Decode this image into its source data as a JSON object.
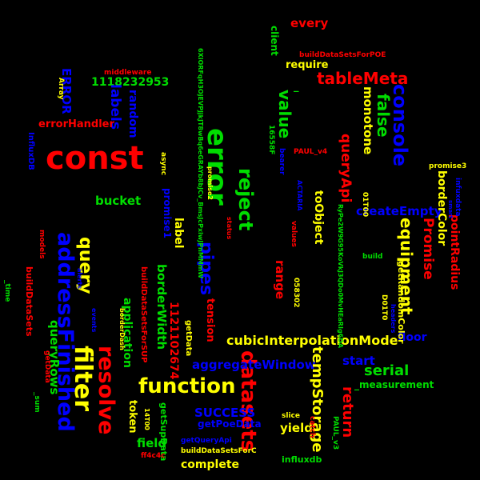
{
  "colors": {
    "red": "#ff0000",
    "green": "#00dd00",
    "blue": "#0000ff",
    "yellow": "#ffff00",
    "background": "#000000"
  },
  "words": [
    {
      "text": "const",
      "color": "red"
    },
    {
      "text": "error",
      "color": "green"
    },
    {
      "text": "filter",
      "color": "yellow"
    },
    {
      "text": "addressFinished",
      "color": "blue"
    },
    {
      "text": "resolve",
      "color": "red"
    },
    {
      "text": "function",
      "color": "yellow"
    },
    {
      "text": "datasets",
      "color": "red"
    },
    {
      "text": "reject",
      "color": "green"
    },
    {
      "text": "console",
      "color": "blue"
    },
    {
      "text": "tableMeta",
      "color": "red"
    },
    {
      "text": "pipes",
      "color": "blue"
    },
    {
      "text": "value",
      "color": "green"
    },
    {
      "text": "_",
      "color": "green"
    },
    {
      "text": "query",
      "color": "yellow"
    },
    {
      "text": "equipment",
      "color": "yellow"
    },
    {
      "text": "Promise",
      "color": "red"
    },
    {
      "text": "false",
      "color": "green"
    },
    {
      "text": "monotone",
      "color": "yellow"
    },
    {
      "text": "cubicInterpolationMode",
      "color": "yellow"
    },
    {
      "text": "aggregateWindow",
      "color": "blue"
    },
    {
      "text": "serial",
      "color": "green"
    },
    {
      "text": "tempStorage",
      "color": "yellow"
    },
    {
      "text": "return",
      "color": "red"
    },
    {
      "text": "1118232953",
      "color": "green"
    },
    {
      "text": "queryApi",
      "color": "red"
    },
    {
      "text": "createEmpty",
      "color": "blue"
    },
    {
      "text": "labels",
      "color": "blue"
    },
    {
      "text": "random",
      "color": "blue"
    },
    {
      "text": "ERROR",
      "color": "blue"
    },
    {
      "text": "errorHandler",
      "color": "red"
    },
    {
      "text": "bucket",
      "color": "green"
    },
    {
      "text": "label",
      "color": "yellow"
    },
    {
      "text": "toObject",
      "color": "yellow"
    },
    {
      "text": "borderColor",
      "color": "yellow"
    },
    {
      "text": "pointRadius",
      "color": "red"
    },
    {
      "text": "queryRows",
      "color": "green"
    },
    {
      "text": "application",
      "color": "green"
    },
    {
      "text": "borderWidth",
      "color": "green"
    },
    {
      "text": "SUCCESS",
      "color": "blue"
    },
    {
      "text": "tension",
      "color": "red"
    },
    {
      "text": "range",
      "color": "red"
    },
    {
      "text": "start",
      "color": "blue"
    },
    {
      "text": "every",
      "color": "red"
    },
    {
      "text": "require",
      "color": "yellow"
    },
    {
      "text": "1121102674",
      "color": "red"
    },
    {
      "text": "token",
      "color": "yellow"
    },
    {
      "text": "field",
      "color": "green"
    },
    {
      "text": "yield",
      "color": "yellow"
    },
    {
      "text": "complete",
      "color": "yellow"
    },
    {
      "text": "getPoeData",
      "color": "blue"
    },
    {
      "text": "floor",
      "color": "blue"
    },
    {
      "text": "_measurement",
      "color": "green"
    },
    {
      "text": "getRandomColor",
      "color": "yellow"
    },
    {
      "text": "influxdb",
      "color": "green"
    },
    {
      "text": "client",
      "color": "green"
    },
    {
      "text": "promise1",
      "color": "blue"
    },
    {
      "text": "getData",
      "color": "yellow"
    },
    {
      "text": "buildDataSetsForPOE",
      "color": "red"
    },
    {
      "text": "middleware",
      "color": "red"
    },
    {
      "text": "Array",
      "color": "yellow"
    },
    {
      "text": "InfluxDB",
      "color": "blue"
    },
    {
      "text": "models",
      "color": "red"
    },
    {
      "text": "buildDataSets",
      "color": "red"
    },
    {
      "text": "_time",
      "color": "green"
    },
    {
      "text": "getData",
      "color": "red"
    },
    {
      "text": "events",
      "color": "blue"
    },
    {
      "text": "borderDash",
      "color": "yellow"
    },
    {
      "text": "buildDataSetsForSUP",
      "color": "red"
    },
    {
      "text": "14T00",
      "color": "yellow"
    },
    {
      "text": "getSupData",
      "color": "green"
    },
    {
      "text": "ff4c4c",
      "color": "red"
    },
    {
      "text": "getQueryApi",
      "color": "blue"
    },
    {
      "text": "buildDataSetsForC",
      "color": "yellow"
    },
    {
      "text": "slice",
      "color": "yellow"
    },
    {
      "text": "catch",
      "color": "red"
    },
    {
      "text": "PAUL_v3",
      "color": "green"
    },
    {
      "text": "PAUL_v4",
      "color": "red"
    },
    {
      "text": "promise3",
      "color": "yellow"
    },
    {
      "text": "infuxdata",
      "color": "blue"
    },
    {
      "text": "build",
      "color": "green"
    },
    {
      "text": "D01T0",
      "color": "yellow"
    },
    {
      "text": "headers",
      "color": "blue"
    },
    {
      "text": "promise2",
      "color": "yellow"
    },
    {
      "text": "status",
      "color": "red"
    },
    {
      "text": "values",
      "color": "red"
    },
    {
      "text": "058302",
      "color": "yellow"
    },
    {
      "text": "01T00",
      "color": "yellow"
    },
    {
      "text": "16558F",
      "color": "green"
    },
    {
      "text": "ACTARIA",
      "color": "blue"
    },
    {
      "text": "async",
      "color": "yellow"
    },
    {
      "text": "bearer",
      "color": "blue"
    },
    {
      "text": "6XiORFqH3OjEVPJjkJT8wBq6eGRAYb8bJCv_BmsJcPxiwJPnMMmW",
      "color": "green"
    },
    {
      "text": "RyPe2W9G95KoVkJ3QDo0MvHEaRIg6DA",
      "color": "green"
    },
    {
      "text": "alerts",
      "color": "blue"
    },
    {
      "text": "_sum",
      "color": "green"
    },
    {
      "text": "smart",
      "color": "blue"
    }
  ]
}
